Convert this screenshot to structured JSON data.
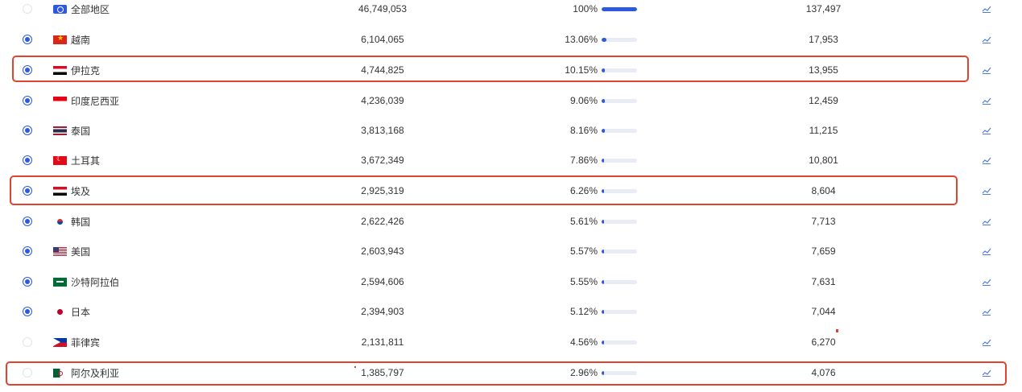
{
  "rows": [
    {
      "country": "全部地区",
      "flag": "globe-icon",
      "selected": false,
      "users": "46,749,053",
      "percent": "100%",
      "share": 1.0,
      "count": "137,497"
    },
    {
      "country": "越南",
      "flag": "vietnam-flag-icon",
      "selected": true,
      "users": "6,104,065",
      "percent": "13.06%",
      "share": 0.1306,
      "count": "17,953"
    },
    {
      "country": "伊拉克",
      "flag": "iraq-flag-icon",
      "selected": true,
      "users": "4,744,825",
      "percent": "10.15%",
      "share": 0.1015,
      "count": "13,955"
    },
    {
      "country": "印度尼西亚",
      "flag": "indonesia-flag-icon",
      "selected": true,
      "users": "4,236,039",
      "percent": "9.06%",
      "share": 0.0906,
      "count": "12,459"
    },
    {
      "country": "泰国",
      "flag": "thailand-flag-icon",
      "selected": true,
      "users": "3,813,168",
      "percent": "8.16%",
      "share": 0.0816,
      "count": "11,215"
    },
    {
      "country": "土耳其",
      "flag": "turkey-flag-icon",
      "selected": true,
      "users": "3,672,349",
      "percent": "7.86%",
      "share": 0.0786,
      "count": "10,801"
    },
    {
      "country": "埃及",
      "flag": "egypt-flag-icon",
      "selected": true,
      "users": "2,925,319",
      "percent": "6.26%",
      "share": 0.0626,
      "count": "8,604"
    },
    {
      "country": "韩国",
      "flag": "korea-flag-icon",
      "selected": true,
      "users": "2,622,426",
      "percent": "5.61%",
      "share": 0.0561,
      "count": "7,713"
    },
    {
      "country": "美国",
      "flag": "usa-flag-icon",
      "selected": true,
      "users": "2,603,943",
      "percent": "5.57%",
      "share": 0.0557,
      "count": "7,659"
    },
    {
      "country": "沙特阿拉伯",
      "flag": "saudi-flag-icon",
      "selected": true,
      "users": "2,594,606",
      "percent": "5.55%",
      "share": 0.0555,
      "count": "7,631"
    },
    {
      "country": "日本",
      "flag": "japan-flag-icon",
      "selected": true,
      "users": "2,394,903",
      "percent": "5.12%",
      "share": 0.0512,
      "count": "7,044"
    },
    {
      "country": "菲律宾",
      "flag": "philippines-flag-icon",
      "selected": false,
      "users": "2,131,811",
      "percent": "4.56%",
      "share": 0.0456,
      "count": "6,270"
    },
    {
      "country": "阿尔及利亚",
      "flag": "algeria-flag-icon",
      "selected": false,
      "users": "1,385,797",
      "percent": "2.96%",
      "share": 0.0296,
      "count": "4,076"
    }
  ],
  "trend_icon": "trend-chart-icon",
  "colors": {
    "accent": "#2c59e0",
    "highlight": "#e0432e",
    "bar_track": "#e8ecf5"
  },
  "highlighted_rows": [
    "伊拉克",
    "埃及",
    "阿尔及利亚"
  ]
}
